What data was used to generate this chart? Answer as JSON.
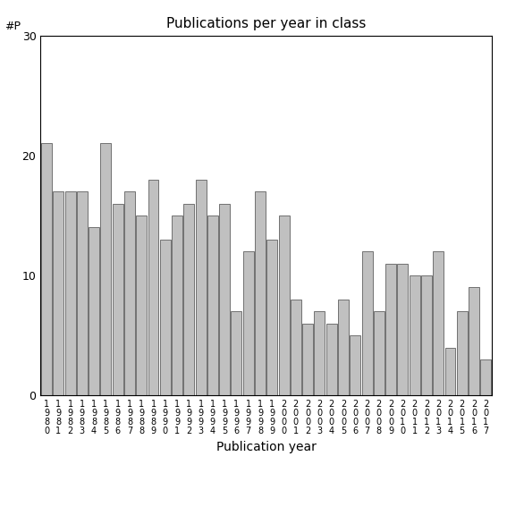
{
  "years": [
    1980,
    1981,
    1982,
    1983,
    1984,
    1985,
    1986,
    1987,
    1988,
    1989,
    1990,
    1991,
    1992,
    1993,
    1994,
    1995,
    1996,
    1997,
    1998,
    1999,
    2000,
    2001,
    2002,
    2003,
    2004,
    2005,
    2006,
    2007,
    2008,
    2009,
    2010,
    2011,
    2012,
    2013,
    2014,
    2015,
    2016,
    2017
  ],
  "values": [
    21,
    17,
    17,
    17,
    14,
    21,
    16,
    17,
    15,
    18,
    13,
    15,
    16,
    18,
    15,
    16,
    7,
    12,
    17,
    13,
    15,
    8,
    6,
    7,
    6,
    8,
    5,
    12,
    7,
    11,
    11,
    10,
    10,
    12,
    4,
    7,
    9,
    3
  ],
  "title": "Publications per year in class",
  "xlabel": "Publication year",
  "ylabel_label": "#P",
  "ylim": [
    0,
    30
  ],
  "yticks": [
    0,
    10,
    20,
    30
  ],
  "bar_color": "#c0c0c0",
  "bar_edge_color": "#606060"
}
